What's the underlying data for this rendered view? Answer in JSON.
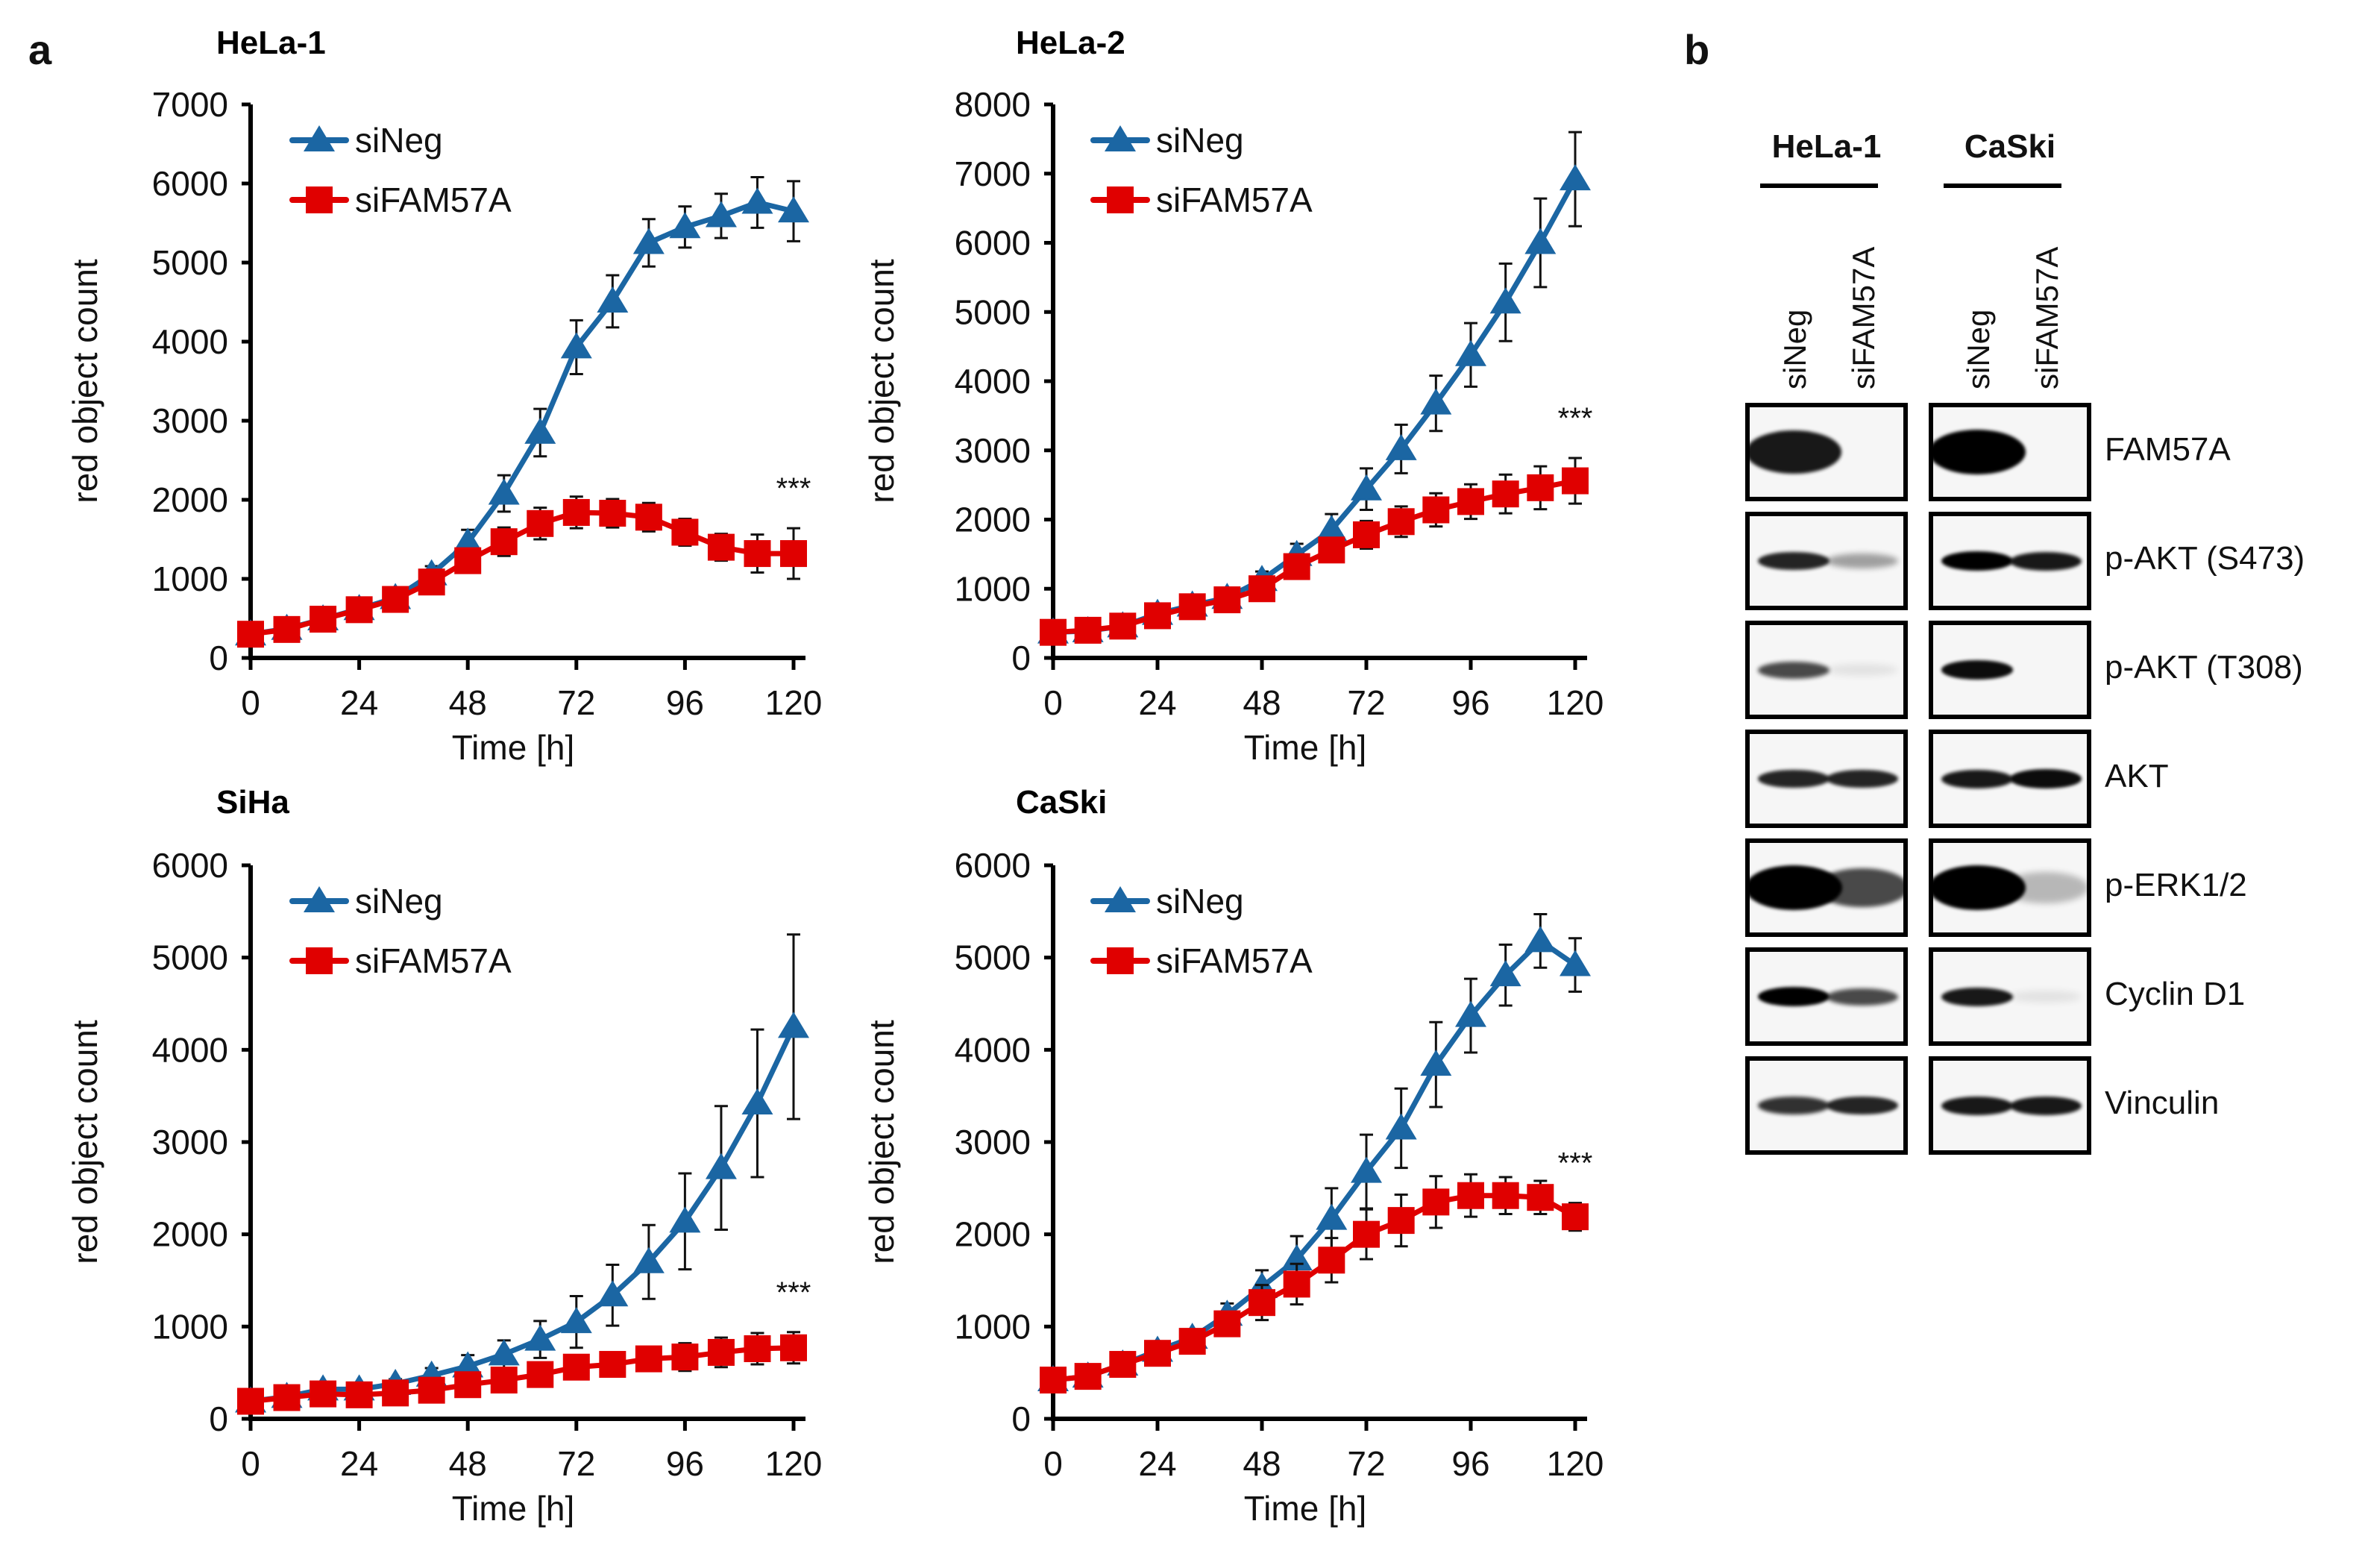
{
  "panels": {
    "a": "a",
    "b": "b"
  },
  "colors": {
    "siNeg": "#1b66a3",
    "siFAM57A": "#e00000",
    "axis": "#000000"
  },
  "legend": {
    "siNeg": "siNeg",
    "siFAM57A": "siFAM57A"
  },
  "chart_data": [
    {
      "type": "line",
      "title": "HeLa-1",
      "xlabel": "Time [h]",
      "ylabel": "red object count",
      "xlim": [
        0,
        120
      ],
      "ylim": [
        0,
        7000
      ],
      "xticks": [
        0,
        24,
        48,
        72,
        96,
        120
      ],
      "yticks": [
        0,
        1000,
        2000,
        3000,
        4000,
        5000,
        6000,
        7000
      ],
      "x": [
        0,
        8,
        16,
        24,
        32,
        40,
        48,
        56,
        64,
        72,
        80,
        88,
        96,
        104,
        112,
        120
      ],
      "legend_position": "top-left",
      "annotation": "***",
      "series": [
        {
          "name": "siNeg",
          "marker": "triangle",
          "values": [
            300,
            370,
            490,
            620,
            760,
            1060,
            1460,
            2080,
            2850,
            3930,
            4510,
            5250,
            5450,
            5590,
            5760,
            5650
          ],
          "errors": [
            40,
            40,
            50,
            60,
            70,
            100,
            160,
            230,
            300,
            340,
            330,
            300,
            260,
            280,
            320,
            380
          ]
        },
        {
          "name": "siFAM57A",
          "marker": "square",
          "values": [
            300,
            360,
            490,
            610,
            740,
            960,
            1230,
            1470,
            1700,
            1840,
            1830,
            1780,
            1590,
            1400,
            1320,
            1320
          ],
          "errors": [
            40,
            40,
            50,
            60,
            70,
            90,
            150,
            180,
            200,
            200,
            180,
            180,
            170,
            170,
            240,
            320
          ]
        }
      ]
    },
    {
      "type": "line",
      "title": "HeLa-2",
      "xlabel": "Time [h]",
      "ylabel": "red object count",
      "xlim": [
        0,
        120
      ],
      "ylim": [
        0,
        8000
      ],
      "xticks": [
        0,
        24,
        48,
        72,
        96,
        120
      ],
      "yticks": [
        0,
        1000,
        2000,
        3000,
        4000,
        5000,
        6000,
        7000,
        8000
      ],
      "x": [
        0,
        8,
        16,
        24,
        32,
        40,
        48,
        56,
        64,
        72,
        80,
        88,
        96,
        104,
        112,
        120
      ],
      "legend_position": "top-left",
      "annotation": "***",
      "series": [
        {
          "name": "siNeg",
          "marker": "triangle",
          "values": [
            370,
            390,
            460,
            640,
            760,
            870,
            1130,
            1490,
            1850,
            2440,
            3020,
            3680,
            4380,
            5140,
            6000,
            6920
          ],
          "errors": [
            40,
            40,
            50,
            60,
            70,
            80,
            120,
            160,
            230,
            300,
            350,
            400,
            460,
            560,
            640,
            680
          ]
        },
        {
          "name": "siFAM57A",
          "marker": "square",
          "values": [
            370,
            400,
            460,
            610,
            740,
            840,
            1000,
            1320,
            1560,
            1780,
            1970,
            2140,
            2260,
            2370,
            2460,
            2560
          ],
          "errors": [
            40,
            40,
            50,
            60,
            70,
            70,
            100,
            130,
            160,
            200,
            220,
            240,
            250,
            280,
            310,
            330
          ]
        }
      ]
    },
    {
      "type": "line",
      "title": "SiHa",
      "xlabel": "Time [h]",
      "ylabel": "red object count",
      "xlim": [
        0,
        120
      ],
      "ylim": [
        0,
        6000
      ],
      "xticks": [
        0,
        24,
        48,
        72,
        96,
        120
      ],
      "yticks": [
        0,
        1000,
        2000,
        3000,
        4000,
        5000,
        6000
      ],
      "x": [
        0,
        8,
        16,
        24,
        32,
        40,
        48,
        56,
        64,
        72,
        80,
        88,
        96,
        104,
        112,
        120
      ],
      "legend_position": "top-left",
      "annotation": "***",
      "series": [
        {
          "name": "siNeg",
          "marker": "triangle",
          "values": [
            190,
            240,
            320,
            320,
            380,
            470,
            570,
            700,
            860,
            1050,
            1340,
            1700,
            2140,
            2720,
            3420,
            4250
          ],
          "errors": [
            30,
            30,
            40,
            40,
            50,
            80,
            120,
            150,
            200,
            280,
            330,
            400,
            520,
            670,
            800,
            1000
          ]
        },
        {
          "name": "siFAM57A",
          "marker": "square",
          "values": [
            190,
            230,
            270,
            260,
            280,
            310,
            370,
            420,
            480,
            560,
            590,
            650,
            670,
            720,
            760,
            770
          ],
          "errors": [
            30,
            30,
            40,
            40,
            40,
            50,
            70,
            90,
            90,
            100,
            120,
            130,
            150,
            160,
            170,
            170
          ]
        }
      ]
    },
    {
      "type": "line",
      "title": "CaSki",
      "xlabel": "Time [h]",
      "ylabel": "red object count",
      "xlim": [
        0,
        120
      ],
      "ylim": [
        0,
        6000
      ],
      "xticks": [
        0,
        24,
        48,
        72,
        96,
        120
      ],
      "yticks": [
        0,
        1000,
        2000,
        3000,
        4000,
        5000,
        6000
      ],
      "x": [
        0,
        8,
        16,
        24,
        32,
        40,
        48,
        56,
        64,
        72,
        80,
        88,
        96,
        104,
        112,
        120
      ],
      "legend_position": "top-left",
      "annotation": "***",
      "series": [
        {
          "name": "siNeg",
          "marker": "triangle",
          "values": [
            420,
            460,
            590,
            740,
            880,
            1130,
            1430,
            1730,
            2170,
            2680,
            3150,
            3840,
            4370,
            4810,
            5180,
            4920
          ],
          "errors": [
            40,
            40,
            50,
            70,
            80,
            120,
            180,
            250,
            330,
            400,
            430,
            460,
            400,
            330,
            290,
            290
          ]
        },
        {
          "name": "siFAM57A",
          "marker": "square",
          "values": [
            420,
            460,
            590,
            710,
            840,
            1030,
            1260,
            1460,
            1720,
            2000,
            2150,
            2350,
            2420,
            2420,
            2400,
            2190
          ],
          "errors": [
            40,
            40,
            50,
            60,
            70,
            110,
            190,
            220,
            240,
            270,
            280,
            280,
            230,
            200,
            180,
            150
          ]
        }
      ]
    }
  ],
  "western_blot": {
    "groups": [
      {
        "label": "HeLa-1",
        "lanes": [
          "siNeg",
          "siFAM57A"
        ]
      },
      {
        "label": "CaSki",
        "lanes": [
          "siNeg",
          "siFAM57A"
        ]
      }
    ],
    "proteins": [
      "FAM57A",
      "p-AKT (S473)",
      "p-AKT (T308)",
      "AKT",
      "p-ERK1/2",
      "Cyclin D1",
      "Vinculin"
    ],
    "band_intensity_note": "relative band darkness 0-1 per [group][protein][lane]",
    "intensity": [
      [
        [
          0.9,
          0.0
        ],
        [
          0.85,
          0.35
        ],
        [
          0.7,
          0.05
        ],
        [
          0.85,
          0.85
        ],
        [
          1.0,
          0.7
        ],
        [
          1.0,
          0.7
        ],
        [
          0.8,
          0.85
        ]
      ],
      [
        [
          1.0,
          0.0
        ],
        [
          1.0,
          0.9
        ],
        [
          0.95,
          0.0
        ],
        [
          0.9,
          0.95
        ],
        [
          1.0,
          0.25
        ],
        [
          0.9,
          0.05
        ],
        [
          0.9,
          0.9
        ]
      ]
    ]
  }
}
